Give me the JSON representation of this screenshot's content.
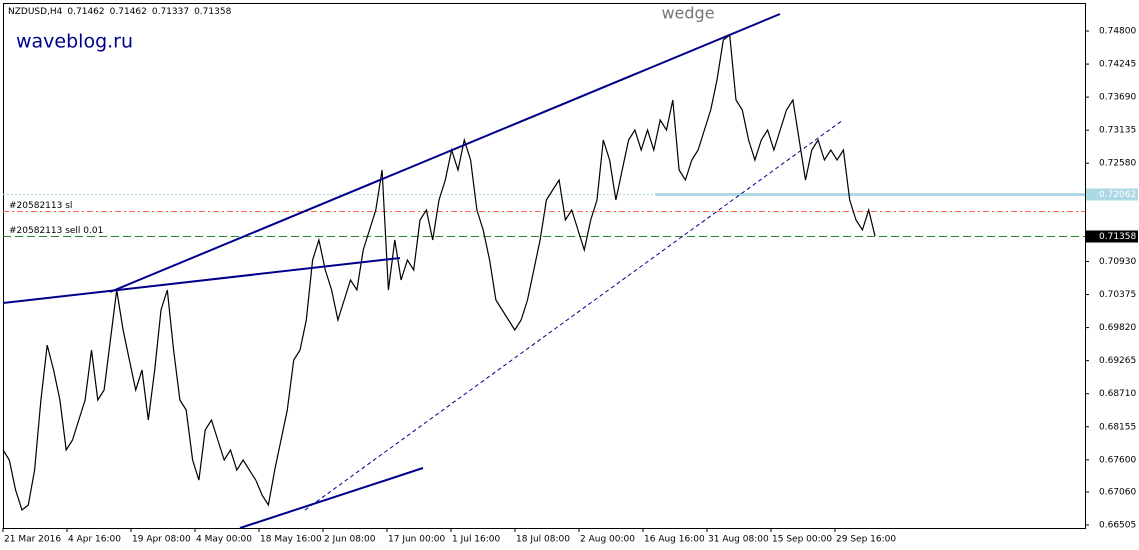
{
  "chart_data": {
    "type": "line",
    "symbol": "NZDUSD,H4",
    "ohlc": [
      0.71462,
      0.71462,
      0.71337,
      0.71358
    ],
    "title": "wedge",
    "watermark": "waveblog.ru",
    "x_labels": [
      "21 Mar 2016",
      "4 Apr 16:00",
      "19 Apr 08:00",
      "4 May 00:00",
      "18 May 16:00",
      "2 Jun 08:00",
      "17 Jun 00:00",
      "1 Jul 16:00",
      "18 Jul 08:00",
      "2 Aug 00:00",
      "16 Aug 16:00",
      "31 Aug 08:00",
      "15 Sep 00:00",
      "29 Sep 16:00"
    ],
    "ylim": [
      0.66455,
      0.75321
    ],
    "yticks": [
      {
        "value": 0.748,
        "label": "0.74800"
      },
      0.74245,
      {
        "value": 0.7369,
        "label": "0.73690"
      },
      0.73135,
      {
        "value": 0.7258,
        "label": "0.72580"
      },
      {
        "value": 0.7093,
        "label": "0.70930"
      },
      0.70375,
      {
        "value": 0.6982,
        "label": "0.69820"
      },
      0.69265,
      {
        "value": 0.6871,
        "label": "0.68710"
      },
      0.68155,
      {
        "value": 0.676,
        "label": "0.67600"
      },
      {
        "value": 0.6706,
        "label": "0.67060"
      },
      0.66505
    ],
    "levels": [
      {
        "name": "",
        "price": 0.72062,
        "color": "#add8e6"
      },
      {
        "name": "#20582113 sl",
        "price": 0.71778,
        "color": "#ff6a3d"
      },
      {
        "name": "#20582113 sell 0.01",
        "price": 0.71358,
        "color": "#228b22"
      }
    ],
    "series": [
      {
        "name": "NZDUSD",
        "color": "#000000",
        "values": [
          0.67764,
          0.67596,
          0.67092,
          0.66757,
          0.66841,
          0.67428,
          0.68604,
          0.69527,
          0.69108,
          0.68604,
          0.67764,
          0.67932,
          0.68268,
          0.68604,
          0.69443,
          0.68604,
          0.68772,
          0.69611,
          0.70451,
          0.69779,
          0.69275,
          0.68772,
          0.69108,
          0.68268,
          0.69108,
          0.70115,
          0.70451,
          0.69443,
          0.68604,
          0.68436,
          0.67596,
          0.6726,
          0.681,
          0.68268,
          0.67932,
          0.67596,
          0.67764,
          0.67428,
          0.67596,
          0.67428,
          0.6726,
          0.67008,
          0.66841,
          0.67428,
          0.67932,
          0.68436,
          0.69275,
          0.69443,
          0.69947,
          0.70955,
          0.71291,
          0.70787,
          0.70451,
          0.69947,
          0.70283,
          0.70619,
          0.70451,
          0.71123,
          0.71459,
          0.71794,
          0.72466,
          0.70451,
          0.71291,
          0.70619,
          0.70955,
          0.70787,
          0.71626,
          0.71794,
          0.71291,
          0.71962,
          0.72298,
          0.72802,
          0.72466,
          0.7297,
          0.72634,
          0.71794,
          0.71459,
          0.70955,
          0.70283,
          0.70115,
          0.69947,
          0.69779,
          0.69947,
          0.70283,
          0.70787,
          0.71291,
          0.71962,
          0.7213,
          0.72298,
          0.71626,
          0.71794,
          0.71459,
          0.71123,
          0.71626,
          0.71962,
          0.7297,
          0.72634,
          0.71962,
          0.72466,
          0.7297,
          0.73138,
          0.72802,
          0.73138,
          0.72802,
          0.73306,
          0.73138,
          0.73642,
          0.72466,
          0.72298,
          0.72634,
          0.72802,
          0.73138,
          0.73474,
          0.73978,
          0.74649,
          0.74733,
          0.73642,
          0.73474,
          0.7297,
          0.72634,
          0.7297,
          0.73138,
          0.72802,
          0.73138,
          0.73474,
          0.73642,
          0.7297,
          0.72298,
          0.72802,
          0.7297,
          0.72634,
          0.72802,
          0.72634,
          0.72802,
          0.71962,
          0.71626,
          0.71459,
          0.71794,
          0.71358
        ]
      }
    ]
  }
}
